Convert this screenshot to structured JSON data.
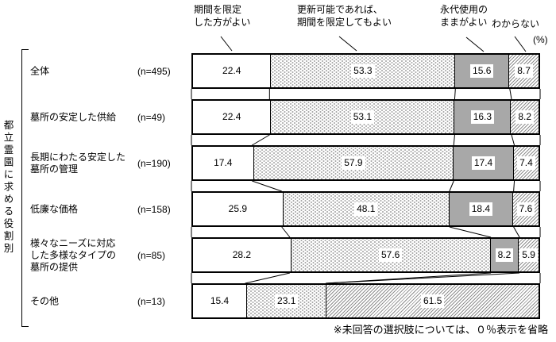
{
  "legend": {
    "items": [
      {
        "lines": [
          "期間を限定",
          "した方がよい"
        ]
      },
      {
        "lines": [
          "更新可能であれば、",
          "期間を限定してもよい"
        ]
      },
      {
        "lines": [
          "永代使用の",
          "ままがよい"
        ]
      },
      {
        "lines": [
          "わからない"
        ]
      }
    ],
    "unit": "(%)"
  },
  "axis_group_label": "都立霊園に求める役割別",
  "footnote": "※未回答の選択肢については、０％表示を省略",
  "colors": {
    "gray-fill": "#a8a8a8",
    "pattern-ink": "#8f8f8f",
    "line-ink": "#000000"
  },
  "chart_data": {
    "type": "bar",
    "stacked": true,
    "orientation": "horizontal",
    "unit": "%",
    "value_range": [
      0,
      100
    ],
    "legend_position": "top",
    "series": [
      "期間を限定した方がよい",
      "更新可能であれば、期間を限定してもよい",
      "永代使用のままがよい",
      "わからない"
    ],
    "categories": [
      {
        "label": "全体",
        "n": "(n=495)",
        "values": [
          22.4,
          53.3,
          15.6,
          8.7
        ]
      },
      {
        "label": "墓所の安定した供給",
        "n": "(n=49)",
        "values": [
          22.4,
          53.1,
          16.3,
          8.2
        ]
      },
      {
        "label": "長期にわたる安定した\n墓所の管理",
        "n": "(n=190)",
        "values": [
          17.4,
          57.9,
          17.4,
          7.4
        ]
      },
      {
        "label": "低廉な価格",
        "n": "(n=158)",
        "values": [
          25.9,
          48.1,
          18.4,
          7.6
        ]
      },
      {
        "label": "様々なニーズに対応\nした多様なタイプの\n墓所の提供",
        "n": "(n=85)",
        "values": [
          28.2,
          57.6,
          8.2,
          5.9
        ]
      },
      {
        "label": "その他",
        "n": "(n=13)",
        "values": [
          15.4,
          23.1,
          0,
          61.5
        ]
      }
    ]
  }
}
